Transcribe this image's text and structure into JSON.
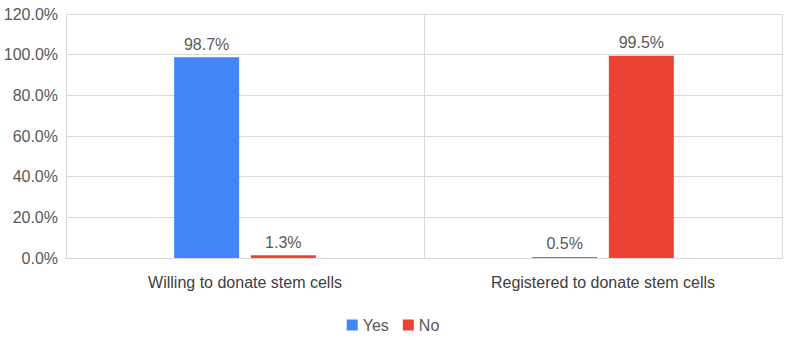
{
  "chart_data": {
    "type": "bar",
    "categories": [
      "Willing to donate stem cells",
      "Registered to donate stem cells"
    ],
    "series": [
      {
        "name": "Yes",
        "color": "#4285f4",
        "values": [
          98.7,
          0.5
        ],
        "value_labels": [
          "98.7%",
          "0.5%"
        ]
      },
      {
        "name": "No",
        "color": "#ea4335",
        "values": [
          1.3,
          99.5
        ],
        "value_labels": [
          "1.3%",
          "99.5%"
        ]
      }
    ],
    "ylim": [
      0,
      120
    ],
    "yticks": [
      {
        "value": 0,
        "label": "0.0%"
      },
      {
        "value": 20,
        "label": "20.0%"
      },
      {
        "value": 40,
        "label": "40.0%"
      },
      {
        "value": 60,
        "label": "60.0%"
      },
      {
        "value": 80,
        "label": "80.0%"
      },
      {
        "value": 100,
        "label": "100.0%"
      },
      {
        "value": 120,
        "label": "120.0%"
      }
    ],
    "grid": true,
    "legend": "bottom",
    "data_labels": true
  }
}
